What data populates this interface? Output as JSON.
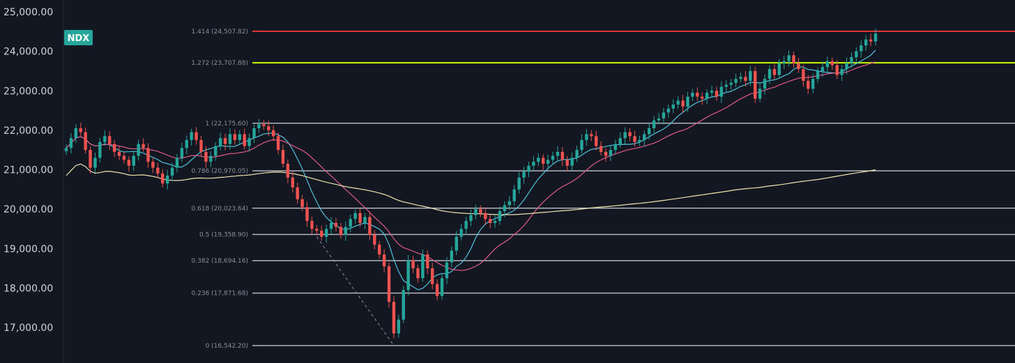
{
  "chart_data": {
    "type": "candlestick",
    "ticker": "NDX",
    "ylim": [
      16100,
      25300
    ],
    "y_ticks": [
      {
        "value": 25000,
        "label": "25,000.00"
      },
      {
        "value": 24000,
        "label": "24,000.00"
      },
      {
        "value": 23000,
        "label": "23,000.00"
      },
      {
        "value": 22000,
        "label": "22,000.00"
      },
      {
        "value": 21000,
        "label": "21,000.00"
      },
      {
        "value": 20000,
        "label": "20,000.00"
      },
      {
        "value": 19000,
        "label": "19,000.00"
      },
      {
        "value": 18000,
        "label": "18,000.00"
      },
      {
        "value": 17000,
        "label": "17,000.00"
      }
    ],
    "fib_levels": [
      {
        "ratio": 1.414,
        "price": 24507.82,
        "label": "1.414 (24,507.82)",
        "color": "#e53935",
        "line_width": 2
      },
      {
        "ratio": 1.272,
        "price": 23707.88,
        "label": "1.272 (23,707.88)",
        "color": "#c6ff00",
        "line_width": 2
      },
      {
        "ratio": 1,
        "price": 22175.6,
        "label": "1 (22,175.60)",
        "color": "#b2b5be",
        "line_width": 1.5
      },
      {
        "ratio": 0.786,
        "price": 20970.05,
        "label": "0.786 (20,970.05)",
        "color": "#b2b5be",
        "line_width": 1.5
      },
      {
        "ratio": 0.618,
        "price": 20023.64,
        "label": "0.618 (20,023.64)",
        "color": "#b2b5be",
        "line_width": 1.5
      },
      {
        "ratio": 0.5,
        "price": 19358.9,
        "label": "0.5 (19,358.90)",
        "color": "#b2b5be",
        "line_width": 1.5
      },
      {
        "ratio": 0.382,
        "price": 18694.16,
        "label": "0.382 (18,694.16)",
        "color": "#b2b5be",
        "line_width": 1.5
      },
      {
        "ratio": 0.236,
        "price": 17871.68,
        "label": "0.236 (17,871.68)",
        "color": "#b2b5be",
        "line_width": 1.5
      },
      {
        "ratio": 0,
        "price": 16542.2,
        "label": "0 (16,542.20)",
        "color": "#b2b5be",
        "line_width": 1.5
      }
    ],
    "candle_closes": [
      21550,
      21800,
      22050,
      21950,
      21500,
      21050,
      21300,
      21700,
      21850,
      21650,
      21450,
      21350,
      21250,
      21100,
      21350,
      21650,
      21550,
      21200,
      21050,
      20900,
      20650,
      20850,
      21050,
      21300,
      21550,
      21750,
      21950,
      21750,
      21450,
      21200,
      21350,
      21600,
      21800,
      21650,
      21900,
      21750,
      21900,
      21600,
      21800,
      22050,
      22150,
      22100,
      22000,
      21850,
      21500,
      21150,
      20800,
      20550,
      20250,
      20050,
      19700,
      19500,
      19450,
      19300,
      19500,
      19650,
      19550,
      19350,
      19550,
      19750,
      19900,
      19650,
      19800,
      19350,
      19100,
      18850,
      18550,
      17650,
      16850,
      17200,
      17950,
      18700,
      18500,
      18250,
      18850,
      18500,
      18100,
      17800,
      18250,
      18650,
      18950,
      19300,
      19500,
      19700,
      19850,
      20000,
      19900,
      19750,
      19650,
      19700,
      19950,
      20100,
      20200,
      20500,
      20800,
      20950,
      21100,
      21200,
      21300,
      21150,
      21250,
      21350,
      21450,
      21250,
      21100,
      21300,
      21500,
      21750,
      21900,
      21850,
      21600,
      21450,
      21350,
      21500,
      21650,
      21800,
      21950,
      21850,
      21700,
      21750,
      21900,
      22050,
      22250,
      22300,
      22450,
      22550,
      22650,
      22750,
      22600,
      22850,
      22950,
      22850,
      22800,
      22950,
      23000,
      22850,
      23100,
      23150,
      23200,
      23300,
      23350,
      23250,
      23500,
      22800,
      23050,
      23300,
      23550,
      23400,
      23700,
      23750,
      23900,
      23700,
      23550,
      23250,
      23050,
      23300,
      23500,
      23600,
      23750,
      23650,
      23400,
      23550,
      23700,
      23850,
      24000,
      24150,
      24300,
      24250,
      24450
    ]
  }
}
